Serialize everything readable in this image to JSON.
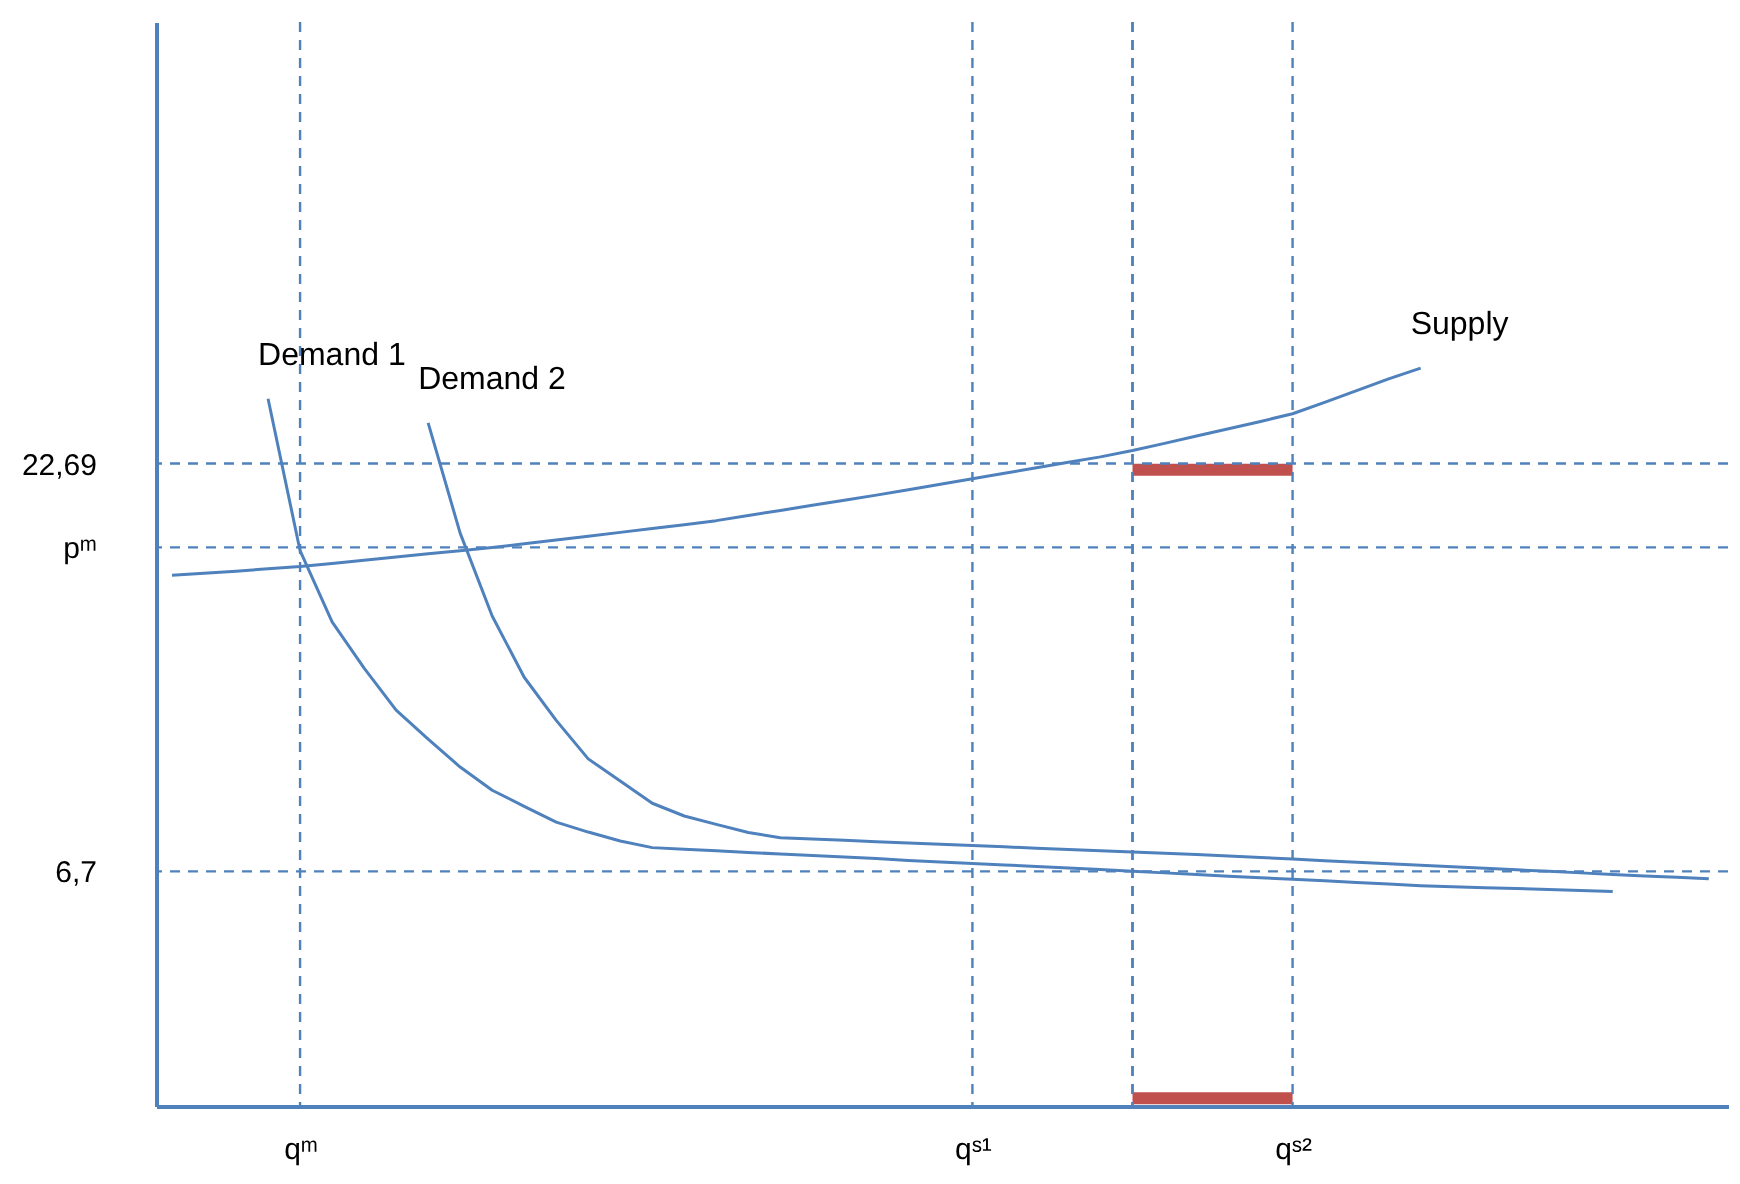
{
  "chart_data": {
    "type": "line",
    "ylim": [
      -2.5,
      40
    ],
    "categories": [
      null,
      null,
      null,
      null,
      "qᵐ",
      null,
      null,
      null,
      null,
      null,
      null,
      null,
      null,
      null,
      null,
      null,
      null,
      null,
      null,
      null,
      null,
      null,
      null,
      null,
      null,
      "qˢ¹",
      null,
      null,
      null,
      null,
      null,
      null,
      null,
      null,
      null,
      "qˢ²",
      null,
      null,
      null,
      null,
      null,
      null,
      null,
      null,
      null,
      null,
      null,
      null,
      null
    ],
    "yticks": [
      {
        "value": 6.7,
        "label": "6,7"
      },
      {
        "value": 19.4,
        "label": "pᵐ"
      },
      {
        "value": 22.69,
        "label": "22,69"
      }
    ],
    "grid": false,
    "marker": "none",
    "line_style": "solid",
    "series": [
      {
        "name": "Supply",
        "color": "#4f81bd",
        "values": [
          18.31,
          18.39,
          18.47,
          18.56,
          18.65,
          18.77,
          18.9,
          19.02,
          19.15,
          19.27,
          19.4,
          19.54,
          19.69,
          19.84,
          19.99,
          20.14,
          20.29,
          20.45,
          20.65,
          20.85,
          21.05,
          21.25,
          21.45,
          21.66,
          21.88,
          22.09,
          22.31,
          22.52,
          22.74,
          22.95,
          23.2,
          23.48,
          23.77,
          24.05,
          24.34,
          24.64,
          25.09,
          25.55,
          26.01,
          26.43,
          null,
          null,
          null,
          null,
          null,
          null,
          null,
          null,
          null
        ]
      },
      {
        "name": "Demand 1",
        "color": "#4f81bd",
        "values": [
          null,
          null,
          null,
          25.23,
          19.27,
          16.48,
          14.67,
          13.02,
          11.88,
          10.79,
          9.88,
          9.25,
          8.63,
          8.24,
          7.89,
          7.63,
          7.57,
          7.51,
          7.44,
          7.38,
          7.32,
          7.26,
          7.2,
          7.13,
          7.07,
          7.01,
          6.95,
          6.89,
          6.83,
          6.77,
          6.7,
          6.64,
          6.58,
          6.51,
          6.45,
          6.39,
          6.33,
          6.26,
          6.2,
          6.14,
          6.1,
          6.06,
          6.03,
          5.99,
          5.95,
          5.91,
          null,
          null,
          null
        ]
      },
      {
        "name": "Demand 2",
        "color": "#4f81bd",
        "values": [
          null,
          null,
          null,
          null,
          null,
          null,
          null,
          null,
          24.28,
          19.96,
          16.71,
          14.31,
          12.62,
          11.11,
          10.24,
          9.37,
          8.87,
          8.54,
          8.22,
          8.02,
          7.97,
          7.92,
          7.86,
          7.81,
          7.76,
          7.71,
          7.66,
          7.61,
          7.56,
          7.51,
          7.46,
          7.41,
          7.36,
          7.3,
          7.24,
          7.18,
          7.12,
          7.06,
          7.0,
          6.94,
          6.88,
          6.82,
          6.76,
          6.7,
          6.64,
          6.58,
          6.52,
          6.47,
          6.41
        ]
      },
      {
        "color": "#c0504d",
        "values": [
          null,
          null,
          null,
          null,
          null,
          null,
          null,
          null,
          null,
          null,
          null,
          null,
          null,
          null,
          null,
          null,
          null,
          null,
          null,
          null,
          null,
          null,
          null,
          null,
          null,
          null,
          null,
          null,
          null,
          null,
          22.45,
          22.45,
          22.45,
          22.45,
          22.45,
          22.45,
          null,
          null,
          null,
          null,
          null,
          null,
          null,
          null,
          null,
          null,
          null,
          null,
          null
        ]
      },
      {
        "color": "#c0504d",
        "values": [
          null,
          null,
          null,
          null,
          null,
          null,
          null,
          null,
          null,
          null,
          null,
          null,
          null,
          null,
          null,
          null,
          null,
          null,
          null,
          null,
          null,
          null,
          null,
          null,
          null,
          null,
          null,
          null,
          null,
          null,
          -2.2,
          -2.2,
          -2.2,
          -2.2,
          -2.2,
          -2.2,
          null,
          null,
          null,
          null,
          null,
          null,
          null,
          null,
          null,
          null,
          null,
          null,
          null
        ]
      }
    ],
    "ref_lines": [
      {
        "axis": "y",
        "value": 22.69,
        "color": "#4f81bd",
        "line_style": "dashed"
      },
      {
        "axis": "y",
        "value": 19.4,
        "color": "#4f81bd",
        "line_style": "dashed"
      },
      {
        "axis": "y",
        "value": 6.7,
        "color": "#4f81bd",
        "line_style": "dashed"
      },
      {
        "axis": "x",
        "value": "qᵐ",
        "color": "#4f81bd",
        "line_style": "dashed"
      },
      {
        "axis": "x",
        "value": "qˢ¹",
        "color": "#4f81bd",
        "line_style": "dashed"
      },
      {
        "axis": "x",
        "value": "qˢ²",
        "color": "#4f81bd",
        "line_style": "dashed"
      }
    ]
  }
}
